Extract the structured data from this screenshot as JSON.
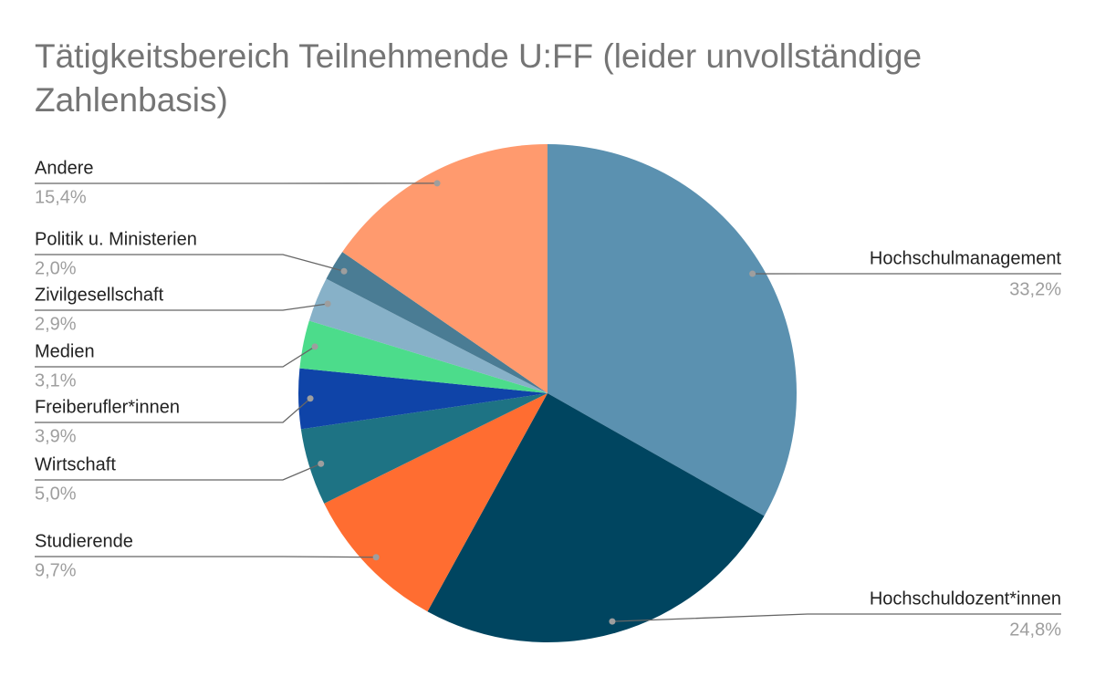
{
  "chart_data": {
    "type": "pie",
    "title": "Tätigkeitsbereich Teilnehmende U:FF (leider unvollständige Zahlenbasis)",
    "categories": [
      "Hochschulmanagement",
      "Hochschuldozent*innen",
      "Studierende",
      "Wirtschaft",
      "Freiberufler*innen",
      "Medien",
      "Zivilgesellschaft",
      "Politik u. Ministerien",
      "Andere"
    ],
    "values": [
      33.2,
      24.8,
      9.7,
      5.0,
      3.9,
      3.1,
      2.9,
      2.0,
      15.4
    ],
    "value_labels": [
      "33,2%",
      "24,8%",
      "9,7%",
      "5,0%",
      "3,9%",
      "3,1%",
      "2,9%",
      "2,0%",
      "15,4%"
    ],
    "colors": [
      "#5b91b0",
      "#004560",
      "#ff6d31",
      "#1e7384",
      "#0f44a8",
      "#4cdc8b",
      "#87b1c8",
      "#4a7c94",
      "#ff9a6e"
    ]
  }
}
